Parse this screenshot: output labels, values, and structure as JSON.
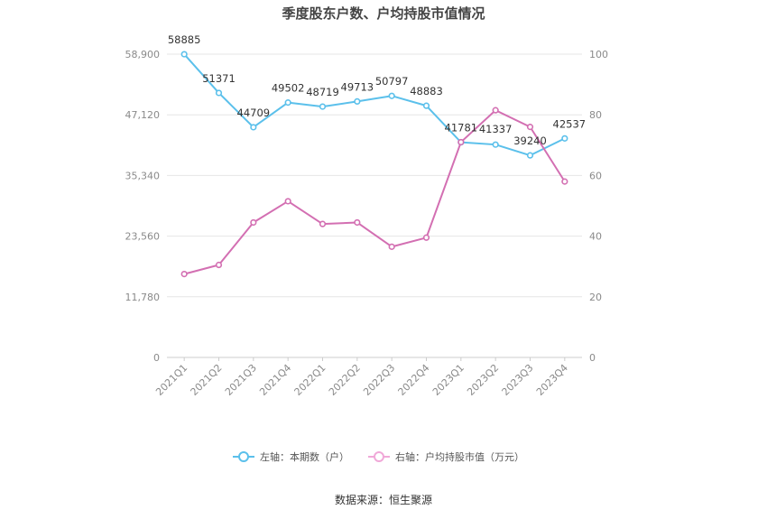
{
  "chart_data": {
    "type": "line",
    "title": "季度股东户数、户均持股市值情况",
    "categories": [
      "2021Q1",
      "2021Q2",
      "2021Q3",
      "2021Q4",
      "2022Q1",
      "2022Q2",
      "2022Q3",
      "2022Q4",
      "2023Q1",
      "2023Q2",
      "2023Q3",
      "2023Q4"
    ],
    "left_axis": {
      "ylim": [
        0,
        58900
      ],
      "ticks": [
        "0",
        "11,780",
        "23,560",
        "35,340",
        "47,120",
        "58,900"
      ]
    },
    "right_axis": {
      "ylim": [
        0,
        100
      ],
      "ticks": [
        "0",
        "20",
        "40",
        "60",
        "80",
        "100"
      ]
    },
    "series": [
      {
        "name": "左轴：本期数（户）",
        "axis": "left",
        "color": "#5bc0eb",
        "values": [
          58885,
          51371,
          44709,
          49502,
          48719,
          49713,
          50797,
          48883,
          41781,
          41337,
          39240,
          42537
        ],
        "labels": [
          "58885",
          "51371",
          "44709",
          "49502",
          "48719",
          "49713",
          "50797",
          "48883",
          "41781",
          "41337",
          "39240",
          "42537"
        ]
      },
      {
        "name": "右轴：户均持股市值（万元）",
        "axis": "right",
        "color": "#d36fb2",
        "values": [
          27.5,
          30.5,
          44.5,
          51.5,
          44,
          44.5,
          36.5,
          39.5,
          71,
          81.5,
          76,
          58
        ]
      }
    ],
    "grid": true,
    "legend": "bottom-center",
    "source": "数据来源：恒生聚源"
  }
}
